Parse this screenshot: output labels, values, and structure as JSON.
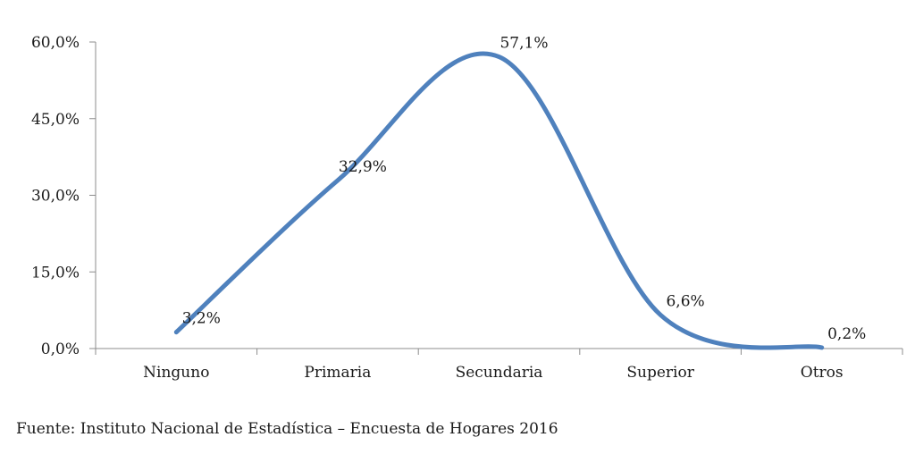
{
  "chart_data": {
    "type": "line",
    "categories": [
      "Ninguno",
      "Primaria",
      "Secundaria",
      "Superior",
      "Otros"
    ],
    "series": [
      {
        "values": [
          3.2,
          32.9,
          57.1,
          6.6,
          0.2
        ],
        "labels": [
          "3,2%",
          "32,9%",
          "57,1%",
          "6,6%",
          "0,2%"
        ],
        "color": "#4F81BD",
        "smooth": true
      }
    ],
    "y_ticks": [
      {
        "value": 0,
        "label": "0,0%"
      },
      {
        "value": 15,
        "label": "15,0%"
      },
      {
        "value": 30,
        "label": "30,0%"
      },
      {
        "value": 45,
        "label": "45,0%"
      },
      {
        "value": 60,
        "label": "60,0%"
      }
    ],
    "ylim": [
      0,
      60
    ],
    "grid": false,
    "legend": false
  },
  "source": "Fuente: Instituto Nacional de Estadística – Encuesta de Hogares 2016"
}
